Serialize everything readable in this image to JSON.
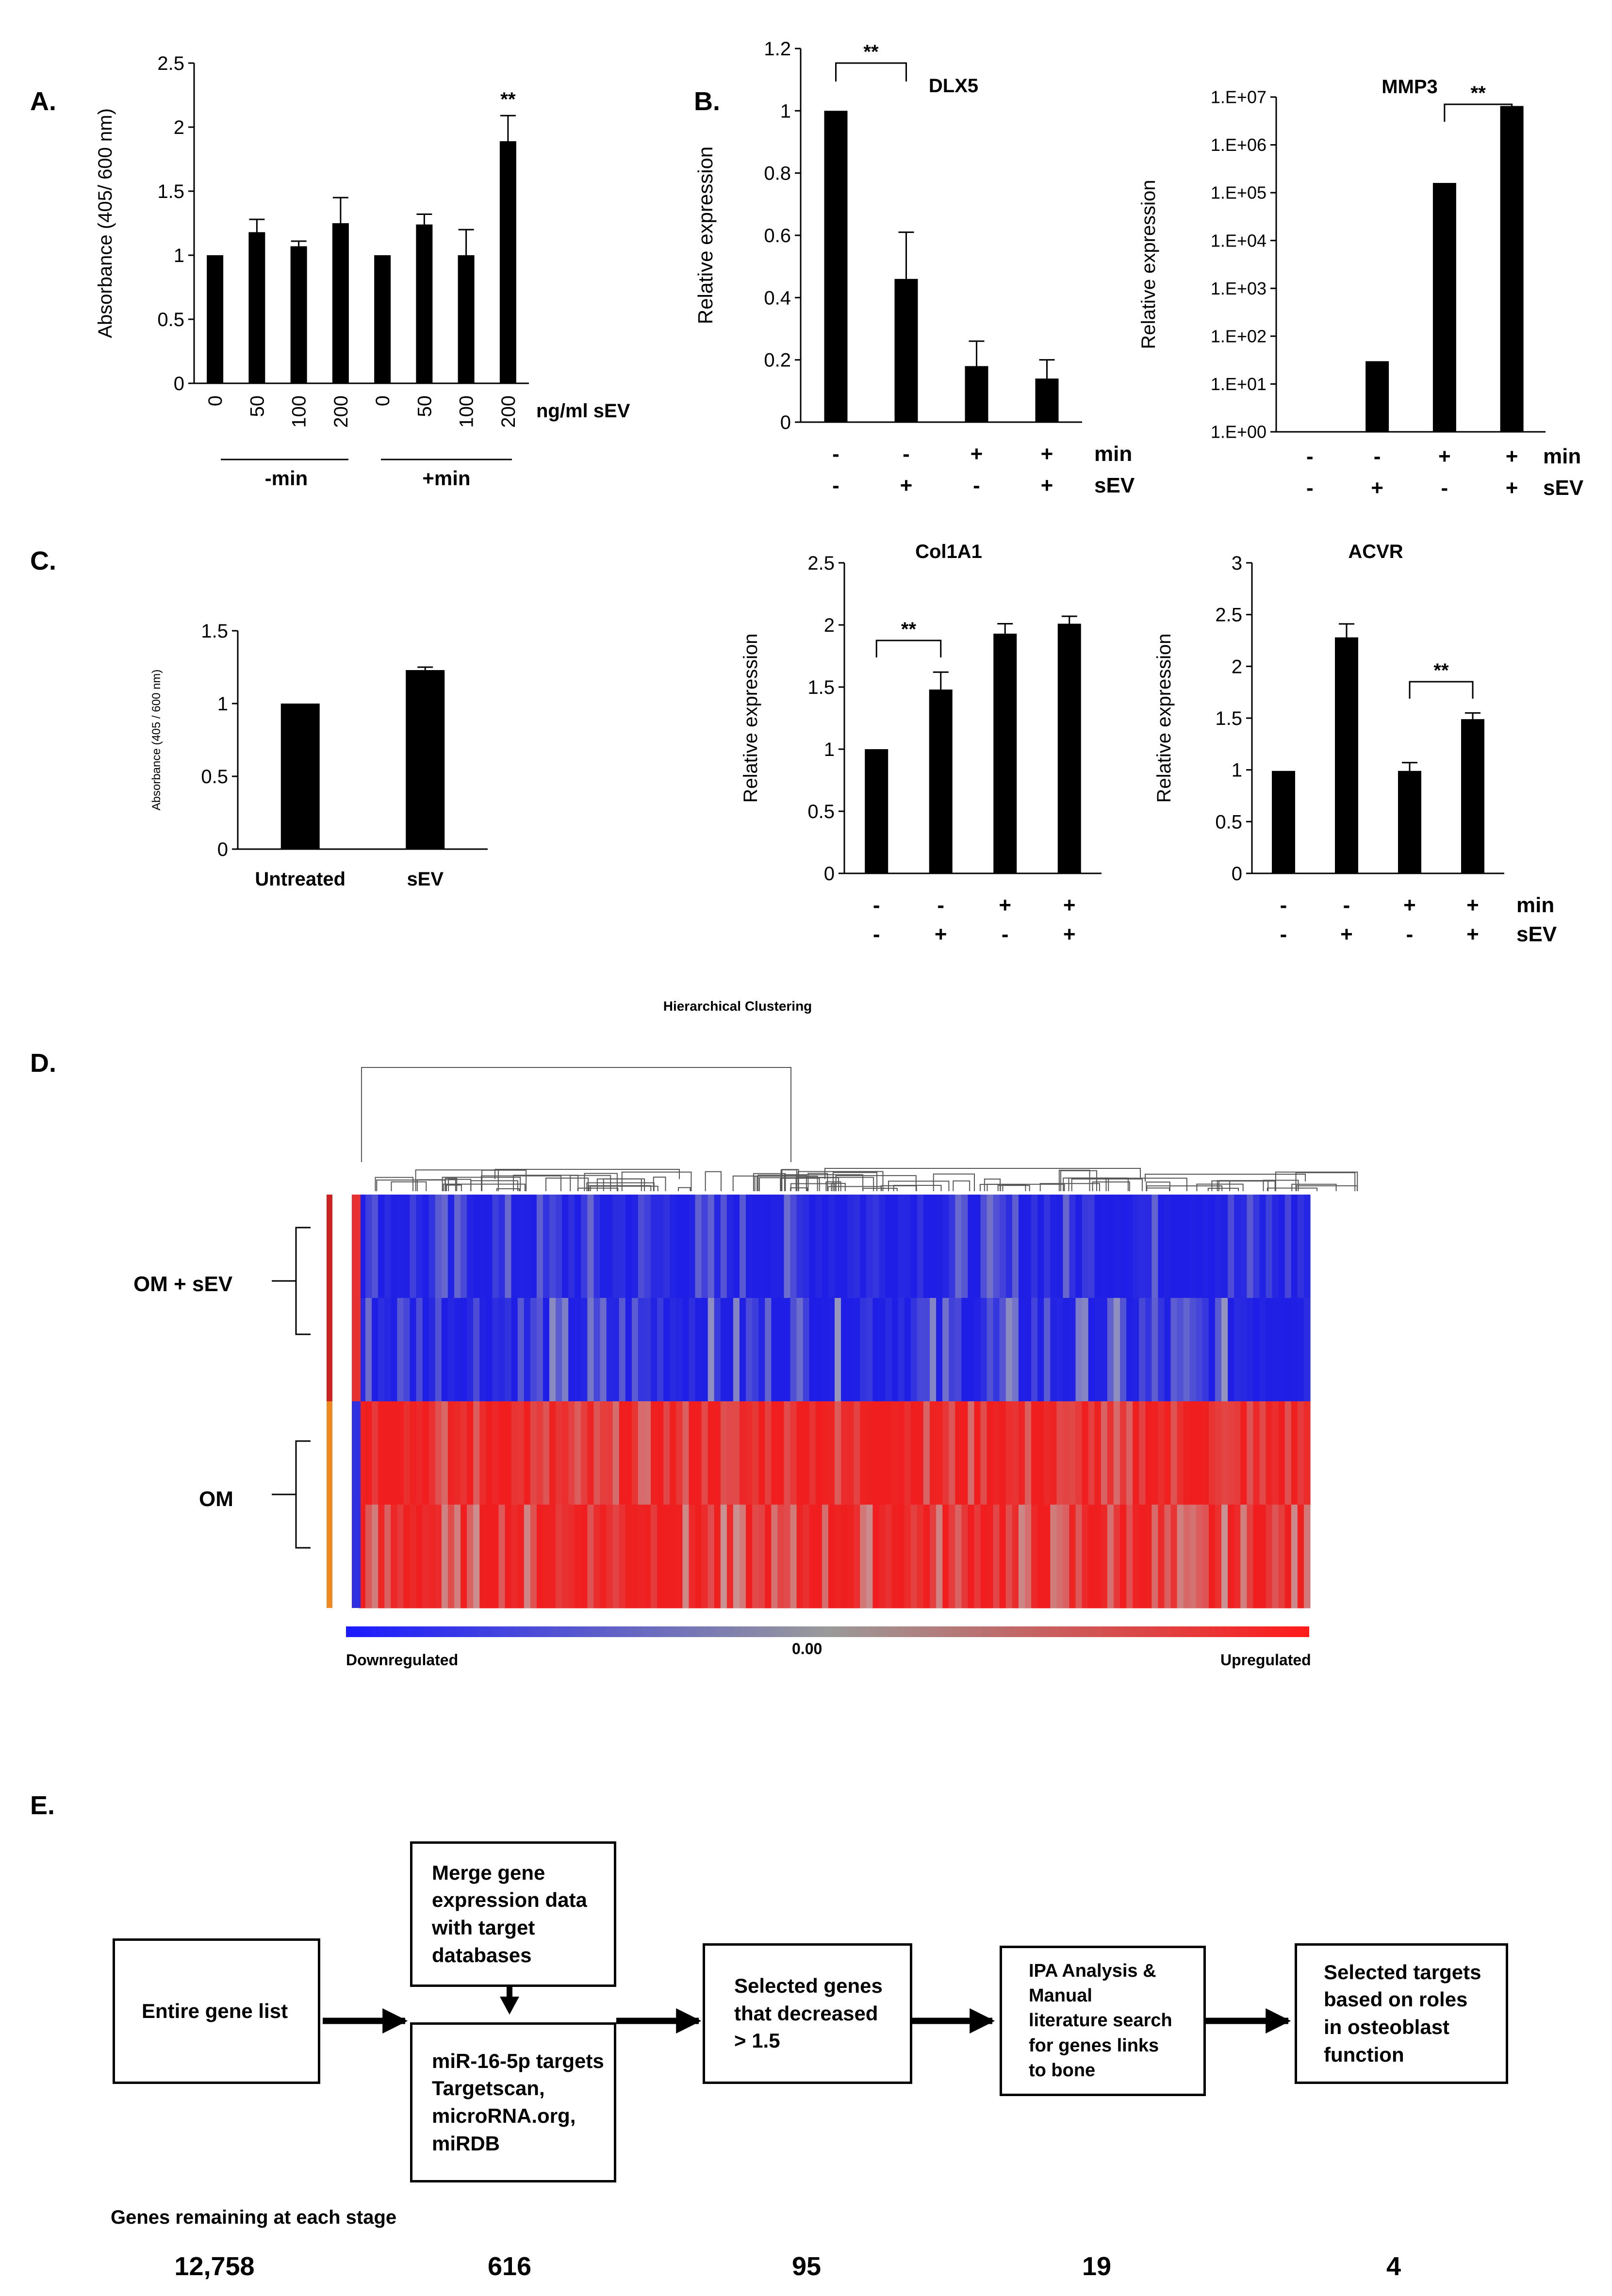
{
  "panels": {
    "A": "A.",
    "B": "B.",
    "C": "C.",
    "D": "D.",
    "E": "E."
  },
  "chart_data": [
    {
      "id": "A",
      "type": "bar",
      "title": "",
      "ylabel": "Absorbance (405/ 600 nm)",
      "ylim": [
        0,
        2.5
      ],
      "yticks": [
        "0",
        "0.5",
        "1",
        "1.5",
        "2",
        "2.5"
      ],
      "categories": [
        "0",
        "50",
        "100",
        "200",
        "0",
        "50",
        "100",
        "200"
      ],
      "values": [
        1.0,
        1.18,
        1.07,
        1.25,
        1.0,
        1.24,
        1.0,
        1.89
      ],
      "errors": [
        0.0,
        0.1,
        0.04,
        0.2,
        0.0,
        0.08,
        0.2,
        0.2
      ],
      "unit_label": "ng/ml sEV",
      "groups": [
        "-min",
        "+min"
      ],
      "significance": "**"
    },
    {
      "id": "B-DLX5",
      "type": "bar",
      "title": "DLX5",
      "ylabel": "Relative expression",
      "ylim": [
        0,
        1.2
      ],
      "yticks": [
        "0",
        "0.2",
        "0.4",
        "0.6",
        "0.8",
        "1",
        "1.2"
      ],
      "values": [
        1.0,
        0.46,
        0.18,
        0.14
      ],
      "errors": [
        0.0,
        0.15,
        0.08,
        0.06
      ],
      "min": [
        "-",
        "-",
        "+",
        "+"
      ],
      "sEV": [
        "-",
        "+",
        "-",
        "+"
      ],
      "row_labels": [
        "min",
        "sEV"
      ],
      "significance": "**"
    },
    {
      "id": "B-MMP3",
      "type": "bar",
      "title": "MMP3",
      "yscale": "log",
      "ylabel": "Relative expression",
      "ylim": [
        1,
        10000000
      ],
      "yticks": [
        "1.E+00",
        "1.E+01",
        "1.E+02",
        "1.E+03",
        "1.E+04",
        "1.E+05",
        "1.E+06",
        "1.E+07"
      ],
      "values": [
        0,
        30,
        160000,
        6500000
      ],
      "min": [
        "-",
        "-",
        "+",
        "+"
      ],
      "sEV": [
        "-",
        "+",
        "-",
        "+"
      ],
      "row_labels": [
        "min",
        "sEV"
      ],
      "significance": "**"
    },
    {
      "id": "C",
      "type": "bar",
      "title": "",
      "ylabel": "Absorbance (405 / 600 nm)",
      "ylim": [
        0,
        1.5
      ],
      "yticks": [
        "0",
        "0.5",
        "1",
        "1.5"
      ],
      "categories": [
        "Untreated",
        "sEV"
      ],
      "values": [
        1.0,
        1.23
      ],
      "errors": [
        0.0,
        0.02
      ]
    },
    {
      "id": "C-Col1A1",
      "type": "bar",
      "title": "Col1A1",
      "ylabel": "Relative expression",
      "ylim": [
        0,
        2.5
      ],
      "yticks": [
        "0",
        "0.5",
        "1",
        "1.5",
        "2",
        "2.5"
      ],
      "values": [
        1.0,
        1.48,
        1.93,
        2.01
      ],
      "errors": [
        0.0,
        0.14,
        0.08,
        0.06
      ],
      "min": [
        "-",
        "-",
        "+",
        "+"
      ],
      "sEV": [
        "-",
        "+",
        "-",
        "+"
      ],
      "significance": "**"
    },
    {
      "id": "C-ACVR",
      "type": "bar",
      "title": "ACVR",
      "ylabel": "Relative expression",
      "ylim": [
        0,
        3
      ],
      "yticks": [
        "0",
        "0.5",
        "1",
        "1.5",
        "2",
        "2.5",
        "3"
      ],
      "values": [
        0.99,
        2.28,
        0.99,
        1.49
      ],
      "errors": [
        0.0,
        0.13,
        0.08,
        0.06
      ],
      "min": [
        "-",
        "-",
        "+",
        "+"
      ],
      "sEV": [
        "-",
        "+",
        "-",
        "+"
      ],
      "row_labels": [
        "min",
        "sEV"
      ],
      "significance": "**"
    },
    {
      "id": "D",
      "type": "heatmap",
      "title": "Hierarchical Clustering",
      "rows": [
        "OM + sEV",
        "OM"
      ],
      "colorbar": {
        "low": "Downregulated",
        "mid": "0.00",
        "high": "Upregulated"
      },
      "colors": {
        "low": "#1a1aff",
        "mid": "#9a9a9a",
        "high": "#ff1a1a"
      }
    }
  ],
  "flow": {
    "boxes": [
      {
        "lines": [
          "Entire gene list"
        ]
      },
      {
        "lines": [
          "Merge gene",
          "expression data",
          "with target",
          "databases"
        ]
      },
      {
        "lines": [
          "miR-16-5p targets",
          "Targetscan,",
          "microRNA.org,",
          "miRDB"
        ]
      },
      {
        "lines": [
          "Selected genes",
          "that decreased",
          "> 1.5"
        ]
      },
      {
        "lines": [
          "IPA Analysis &",
          "Manual",
          "literature search",
          "for genes links",
          "to bone"
        ]
      },
      {
        "lines": [
          "Selected targets",
          "based on roles",
          "in osteoblast",
          "function"
        ]
      }
    ],
    "stage_title": "Genes remaining at each stage",
    "counts": [
      "12,758",
      "616",
      "95",
      "19",
      "4"
    ]
  }
}
